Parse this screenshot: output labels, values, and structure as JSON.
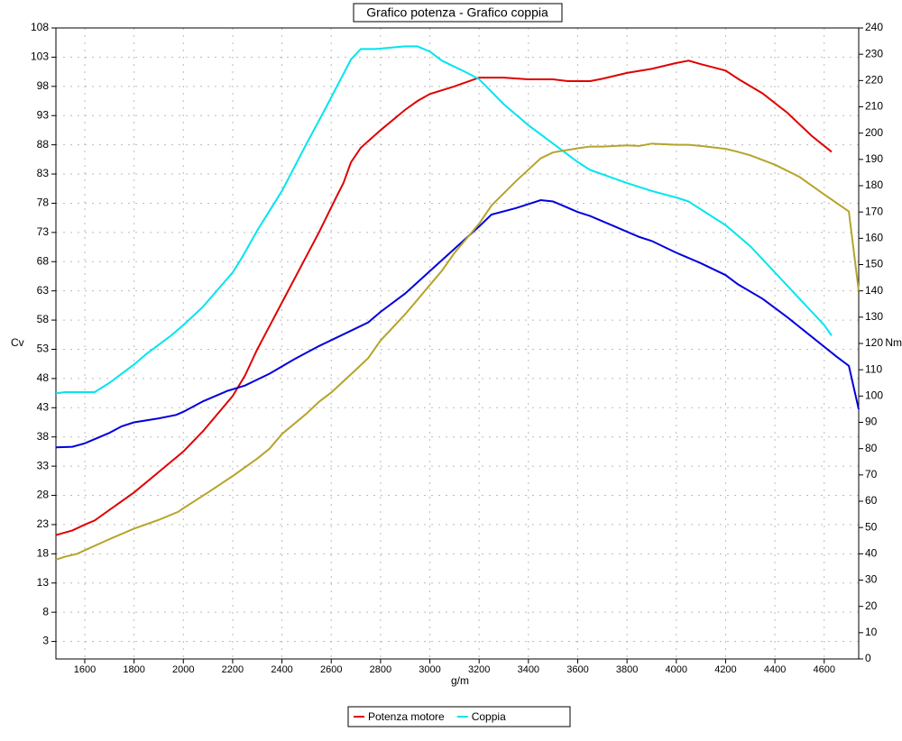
{
  "chart_data": {
    "type": "line",
    "title": "Grafico potenza - Grafico coppia",
    "x_label": "g/m",
    "y_label": "Cv",
    "y2_label": "Nm",
    "xlim": [
      1483,
      4740
    ],
    "xticks": [
      1600,
      1800,
      2000,
      2200,
      2400,
      2600,
      2800,
      3000,
      3200,
      3400,
      3600,
      3800,
      4000,
      4200,
      4400,
      4600
    ],
    "ylim": [
      0,
      108
    ],
    "yticks": [
      3,
      8,
      13,
      18,
      23,
      28,
      33,
      38,
      43,
      48,
      53,
      58,
      63,
      68,
      73,
      78,
      83,
      88,
      93,
      98,
      103,
      108
    ],
    "y2lim": [
      0,
      240
    ],
    "y2ticks": [
      0,
      10,
      20,
      30,
      40,
      50,
      60,
      70,
      80,
      90,
      100,
      110,
      120,
      130,
      140,
      150,
      160,
      170,
      180,
      190,
      200,
      210,
      220,
      230,
      240
    ],
    "grid": true,
    "series": [
      {
        "name": "Potenza motore",
        "color": "#e00000",
        "x": [
          1483,
          1550,
          1600,
          1640,
          1700,
          1800,
          1900,
          2000,
          2080,
          2200,
          2250,
          2300,
          2350,
          2400,
          2500,
          2550,
          2620,
          2650,
          2680,
          2720,
          2800,
          2900,
          2950,
          3000,
          3100,
          3200,
          3300,
          3400,
          3500,
          3560,
          3650,
          3700,
          3800,
          3900,
          4000,
          4050,
          4100,
          4200,
          4250,
          4350,
          4450,
          4550,
          4630
        ],
        "values": [
          21.2,
          22,
          23,
          23.7,
          25.5,
          28.5,
          32,
          35.5,
          39,
          45,
          48.5,
          53,
          57,
          61,
          69,
          73,
          79,
          81.5,
          85,
          87.5,
          90.5,
          94,
          95.5,
          96.7,
          98,
          99.5,
          99.5,
          99.2,
          99.2,
          98.9,
          98.9,
          99.3,
          100.3,
          101,
          102,
          102.4,
          101.8,
          100.7,
          99.3,
          96.8,
          93.5,
          89.5,
          86.8
        ]
      },
      {
        "name": "Coppia",
        "color": "#00e5ee",
        "axis": "y2",
        "x": [
          1483,
          1520,
          1640,
          1700,
          1800,
          1850,
          1950,
          2000,
          2080,
          2200,
          2240,
          2300,
          2400,
          2500,
          2580,
          2680,
          2720,
          2780,
          2900,
          2950,
          3000,
          3050,
          3150,
          3200,
          3300,
          3400,
          3500,
          3600,
          3650,
          3800,
          3900,
          4000,
          4050,
          4200,
          4300,
          4400,
          4500,
          4600,
          4630
        ],
        "values": [
          101,
          101.5,
          101.5,
          105,
          112,
          116,
          123,
          127,
          134,
          147,
          153,
          163,
          178,
          196,
          210,
          228,
          232,
          232,
          233,
          233,
          231,
          227.5,
          223,
          220.5,
          211,
          203,
          196,
          189,
          186,
          181,
          178,
          175.5,
          174,
          165,
          157,
          147,
          137,
          127,
          123
        ]
      },
      {
        "color": "#0000dd",
        "axis": "y2",
        "x": [
          1483,
          1550,
          1600,
          1700,
          1750,
          1800,
          1900,
          1970,
          2000,
          2080,
          2180,
          2250,
          2350,
          2450,
          2550,
          2650,
          2750,
          2800,
          2900,
          3000,
          3100,
          3200,
          3250,
          3350,
          3450,
          3500,
          3600,
          3650,
          3750,
          3850,
          3900,
          4000,
          4100,
          4200,
          4250,
          4350,
          4450,
          4550,
          4650,
          4700,
          4740
        ],
        "values": [
          80.5,
          80.7,
          82,
          86,
          88.5,
          90,
          91.5,
          92.8,
          94,
          98,
          102,
          104,
          108.5,
          114,
          119,
          123.5,
          128,
          132,
          139,
          147.5,
          156,
          164.5,
          169,
          171.5,
          174.5,
          174,
          170,
          168.5,
          164.5,
          160.5,
          159,
          154.5,
          150.5,
          146,
          142.5,
          137,
          130,
          122.5,
          115,
          111.5,
          95
        ]
      },
      {
        "color": "#b5a42a",
        "x": [
          1483,
          1520,
          1570,
          1600,
          1700,
          1800,
          1900,
          1980,
          2000,
          2100,
          2200,
          2250,
          2300,
          2350,
          2400,
          2500,
          2550,
          2600,
          2700,
          2750,
          2800,
          2900,
          3000,
          3050,
          3100,
          3200,
          3250,
          3350,
          3450,
          3500,
          3600,
          3650,
          3700,
          3800,
          3850,
          3900,
          4000,
          4050,
          4100,
          4200,
          4250,
          4300,
          4400,
          4500,
          4600,
          4700,
          4740
        ],
        "values": [
          17,
          17.5,
          18,
          18.6,
          20.5,
          22.3,
          23.8,
          25.2,
          25.8,
          28.5,
          31.3,
          32.8,
          34.3,
          36,
          38.5,
          42,
          44,
          45.6,
          49.5,
          51.5,
          54.5,
          59,
          64,
          66.5,
          69.5,
          74.5,
          77.6,
          81.8,
          85.7,
          86.7,
          87.4,
          87.7,
          87.7,
          87.9,
          87.8,
          88.2,
          88,
          88,
          87.8,
          87.3,
          86.8,
          86.2,
          84.6,
          82.5,
          79.5,
          76.6,
          63
        ]
      }
    ]
  }
}
